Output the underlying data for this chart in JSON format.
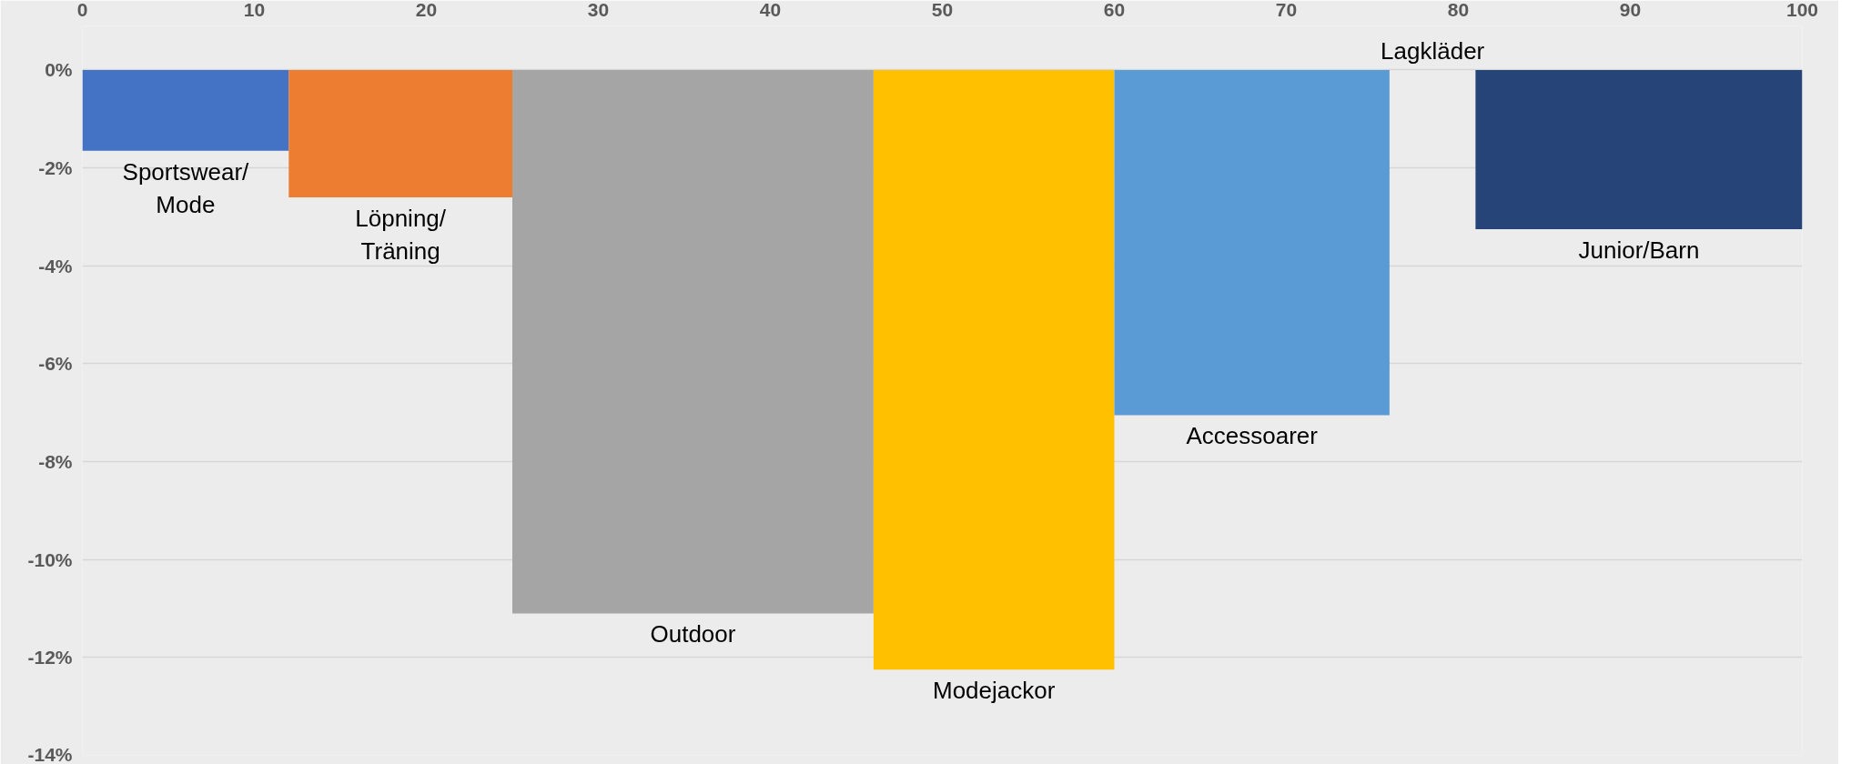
{
  "chart_data": {
    "type": "histogram",
    "bins": [
      0,
      12,
      25,
      46,
      60,
      76,
      81,
      100
    ],
    "values": [
      -1.65,
      -2.6,
      -11.1,
      -12.25,
      -7.05,
      0,
      -3.25
    ],
    "colors": [
      "#4472c4",
      "#ed7d31",
      "#a5a5a5",
      "#ffc000",
      "#5b9bd5",
      "#70ad47",
      "#264478"
    ],
    "xlim": [
      0,
      100
    ],
    "xticks": [
      0,
      10,
      20,
      30,
      40,
      50,
      60,
      70,
      80,
      90,
      100
    ],
    "ylim": [
      -14,
      0.9
    ],
    "yticks": [
      {
        "value": -14,
        "label": "-14%"
      },
      {
        "value": -12,
        "label": "-12%"
      },
      {
        "value": -10,
        "label": "-10%"
      },
      {
        "value": -8,
        "label": "-8%"
      },
      {
        "value": -6,
        "label": "-6%"
      },
      {
        "value": -4,
        "label": "-4%"
      },
      {
        "value": -2,
        "label": "-2%"
      },
      {
        "value": 0,
        "label": "0%"
      }
    ],
    "grid": "y",
    "annotations": [
      {
        "text": "Sportswear/\nMode",
        "x": 6,
        "y": -1.65
      },
      {
        "text": "Löpning/\nTräning",
        "x": 18.5,
        "y": -2.6
      },
      {
        "text": "Outdoor",
        "x": 35.5,
        "y": -11.1
      },
      {
        "text": "Modejackor",
        "x": 53,
        "y": -12.25
      },
      {
        "text": "Accessoarer",
        "x": 68,
        "y": -7.05
      },
      {
        "text": "Lagkläder",
        "x": 78.5,
        "y": 0
      },
      {
        "text": "Junior/Barn",
        "x": 90.5,
        "y": -3.25
      }
    ]
  }
}
